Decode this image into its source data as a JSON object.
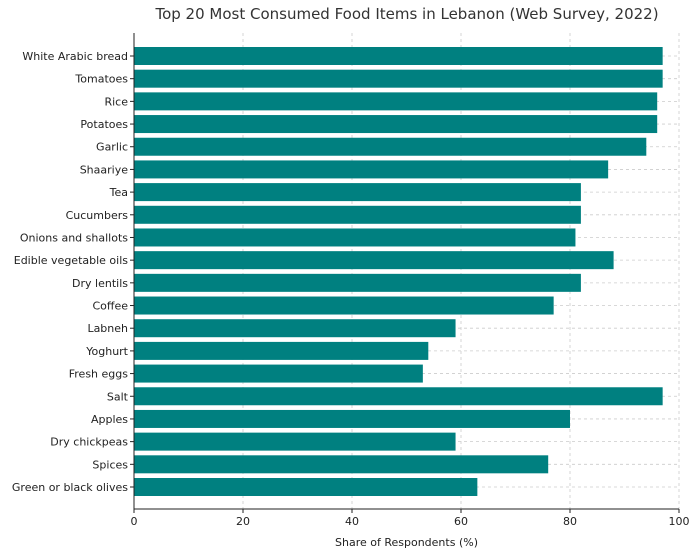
{
  "chart_data": {
    "type": "bar",
    "orientation": "horizontal",
    "title": "Top 20 Most Consumed Food Items in Lebanon (Web Survey, 2022)",
    "xlabel": "Share of Respondents (%)",
    "ylabel": "",
    "xlim": [
      0,
      100
    ],
    "xticks": [
      0,
      20,
      40,
      60,
      80,
      100
    ],
    "grid": "both-dashed",
    "bar_color": "#008080",
    "categories": [
      "White Arabic bread",
      "Tomatoes",
      "Rice",
      "Potatoes",
      "Garlic",
      "Shaariye",
      "Tea",
      "Cucumbers",
      "Onions and shallots",
      "Edible vegetable oils",
      "Dry lentils",
      "Coffee",
      "Labneh",
      "Yoghurt",
      "Fresh eggs",
      "Salt",
      "Apples",
      "Dry chickpeas",
      "Spices",
      "Green or black olives"
    ],
    "values": [
      97,
      97,
      96,
      96,
      94,
      87,
      82,
      82,
      81,
      88,
      82,
      77,
      59,
      54,
      53,
      97,
      80,
      59,
      76,
      63
    ]
  }
}
